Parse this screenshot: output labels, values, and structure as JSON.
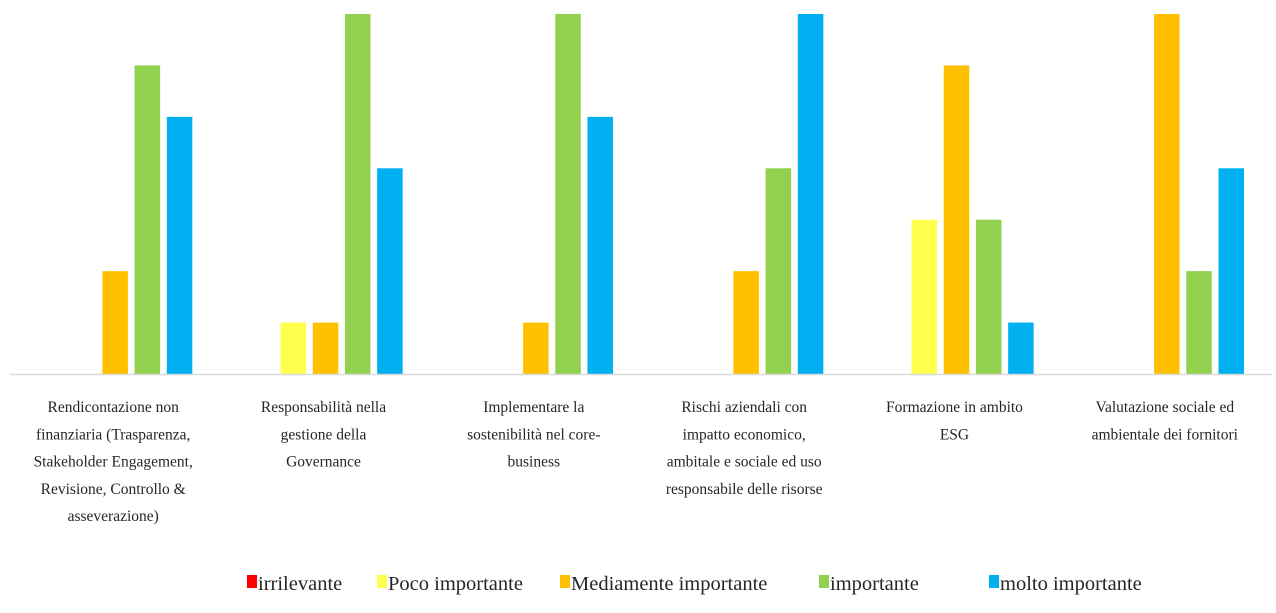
{
  "chart_data": {
    "type": "bar",
    "title": "",
    "xlabel": "",
    "ylabel": "",
    "ylim": [
      0,
      7
    ],
    "grid": false,
    "legend_position": "bottom",
    "categories": [
      "Rendicontazione non finanziaria (Trasparenza, Stakeholder Engagement, Revisione, Controllo & asseverazione)",
      "Responsabilità nella gestione della Governance",
      "Implementare la sostenibilità nel core-business",
      "Rischi aziendali con impatto economico, ambitale e sociale ed uso responsabile delle risorse",
      "Formazione in ambito ESG",
      "Valutazione sociale ed ambientale dei fornitori"
    ],
    "category_label_lines": [
      [
        "Rendicontazione non",
        "finanziaria (Trasparenza,",
        "Stakeholder Engagement,",
        "Revisione, Controllo &",
        "asseverazione)"
      ],
      [
        "Responsabilità nella",
        "gestione della",
        "Governance"
      ],
      [
        "Implementare la",
        "sostenibilità nel core-",
        "business"
      ],
      [
        "Rischi aziendali con",
        "impatto economico,",
        "ambitale e sociale ed uso",
        "responsabile delle risorse"
      ],
      [
        "Formazione in ambito",
        "ESG"
      ],
      [
        "Valutazione sociale ed",
        "ambientale dei fornitori"
      ]
    ],
    "series": [
      {
        "name": "irrilevante",
        "color": "#FF0000",
        "values": [
          0,
          0,
          0,
          0,
          0,
          0
        ]
      },
      {
        "name": "Poco importante",
        "color": "#FFFF4D",
        "values": [
          0,
          1,
          0,
          0,
          3,
          0
        ]
      },
      {
        "name": "Mediamente importante",
        "color": "#FFC000",
        "values": [
          2,
          1,
          1,
          2,
          6,
          7
        ]
      },
      {
        "name": "importante",
        "color": "#92D050",
        "values": [
          6,
          7,
          7,
          4,
          3,
          2
        ]
      },
      {
        "name": "molto importante",
        "color": "#00B0F0",
        "values": [
          5,
          4,
          5,
          7,
          1,
          4
        ]
      }
    ]
  }
}
